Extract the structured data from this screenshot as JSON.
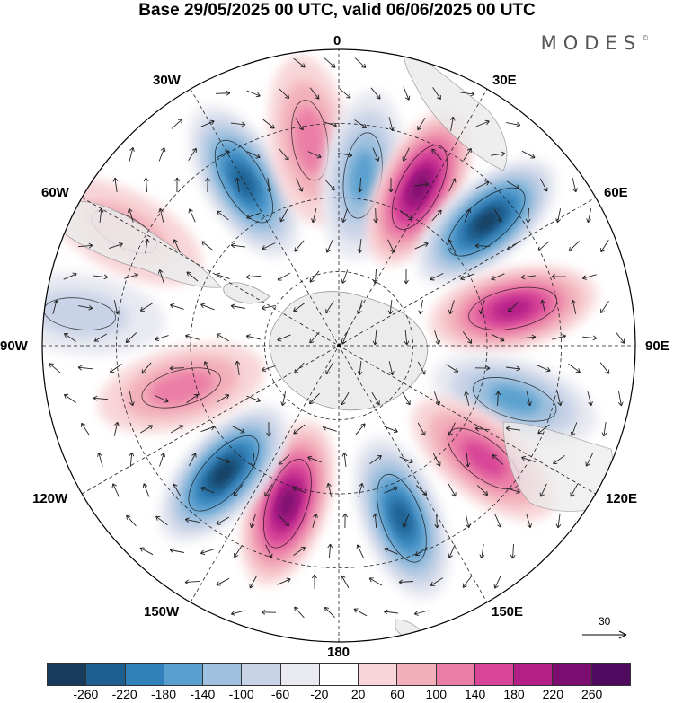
{
  "title": "Base 29/05/2025 00 UTC, valid 06/06/2025 00 UTC",
  "brand": "MODES",
  "brand_mark": "©",
  "longitude_labels": {
    "lon_0": "0",
    "lon_30e": "30E",
    "lon_60e": "60E",
    "lon_90e": "90E",
    "lon_120e": "120E",
    "lon_150e": "150E",
    "lon_180": "180",
    "lon_150w": "150W",
    "lon_120w": "120W",
    "lon_90w": "90W",
    "lon_60w": "60W",
    "lon_30w": "30W"
  },
  "vector_scale_label": "30",
  "colorbar": {
    "tick_labels": [
      "-260",
      "-220",
      "-180",
      "-140",
      "-100",
      "-60",
      "-20",
      "20",
      "60",
      "100",
      "140",
      "180",
      "220",
      "260"
    ],
    "colors": [
      "#183a5c",
      "#1d5f8e",
      "#3080ba",
      "#5aa0cf",
      "#9fc0de",
      "#c9d3e7",
      "#e8e9f1",
      "#ffffff",
      "#f8d5d8",
      "#f2b0bb",
      "#eb7ea6",
      "#d84598",
      "#b11f87",
      "#7b0e70",
      "#4f0a5f"
    ]
  },
  "map": {
    "projection": "south-polar-stereographic",
    "land_color": "#ececec",
    "anomalies": [
      {
        "lon_deg": -30,
        "radius_frac": 0.64,
        "value": -240
      },
      {
        "lon_deg": -8,
        "radius_frac": 0.7,
        "value": 100
      },
      {
        "lon_deg": 8,
        "radius_frac": 0.58,
        "value": -140
      },
      {
        "lon_deg": 27,
        "radius_frac": 0.6,
        "value": 240
      },
      {
        "lon_deg": 50,
        "radius_frac": 0.65,
        "value": -260
      },
      {
        "lon_deg": 78,
        "radius_frac": 0.6,
        "value": 200
      },
      {
        "lon_deg": 107,
        "radius_frac": 0.62,
        "value": -160
      },
      {
        "lon_deg": 128,
        "radius_frac": 0.62,
        "value": 140
      },
      {
        "lon_deg": 160,
        "radius_frac": 0.62,
        "value": -220
      },
      {
        "lon_deg": -162,
        "radius_frac": 0.56,
        "value": 240
      },
      {
        "lon_deg": -138,
        "radius_frac": 0.58,
        "value": -260
      },
      {
        "lon_deg": -105,
        "radius_frac": 0.55,
        "value": 100
      },
      {
        "lon_deg": -83,
        "radius_frac": 0.88,
        "value": -90
      },
      {
        "lon_deg": -62,
        "radius_frac": 0.82,
        "value": 60
      }
    ]
  }
}
